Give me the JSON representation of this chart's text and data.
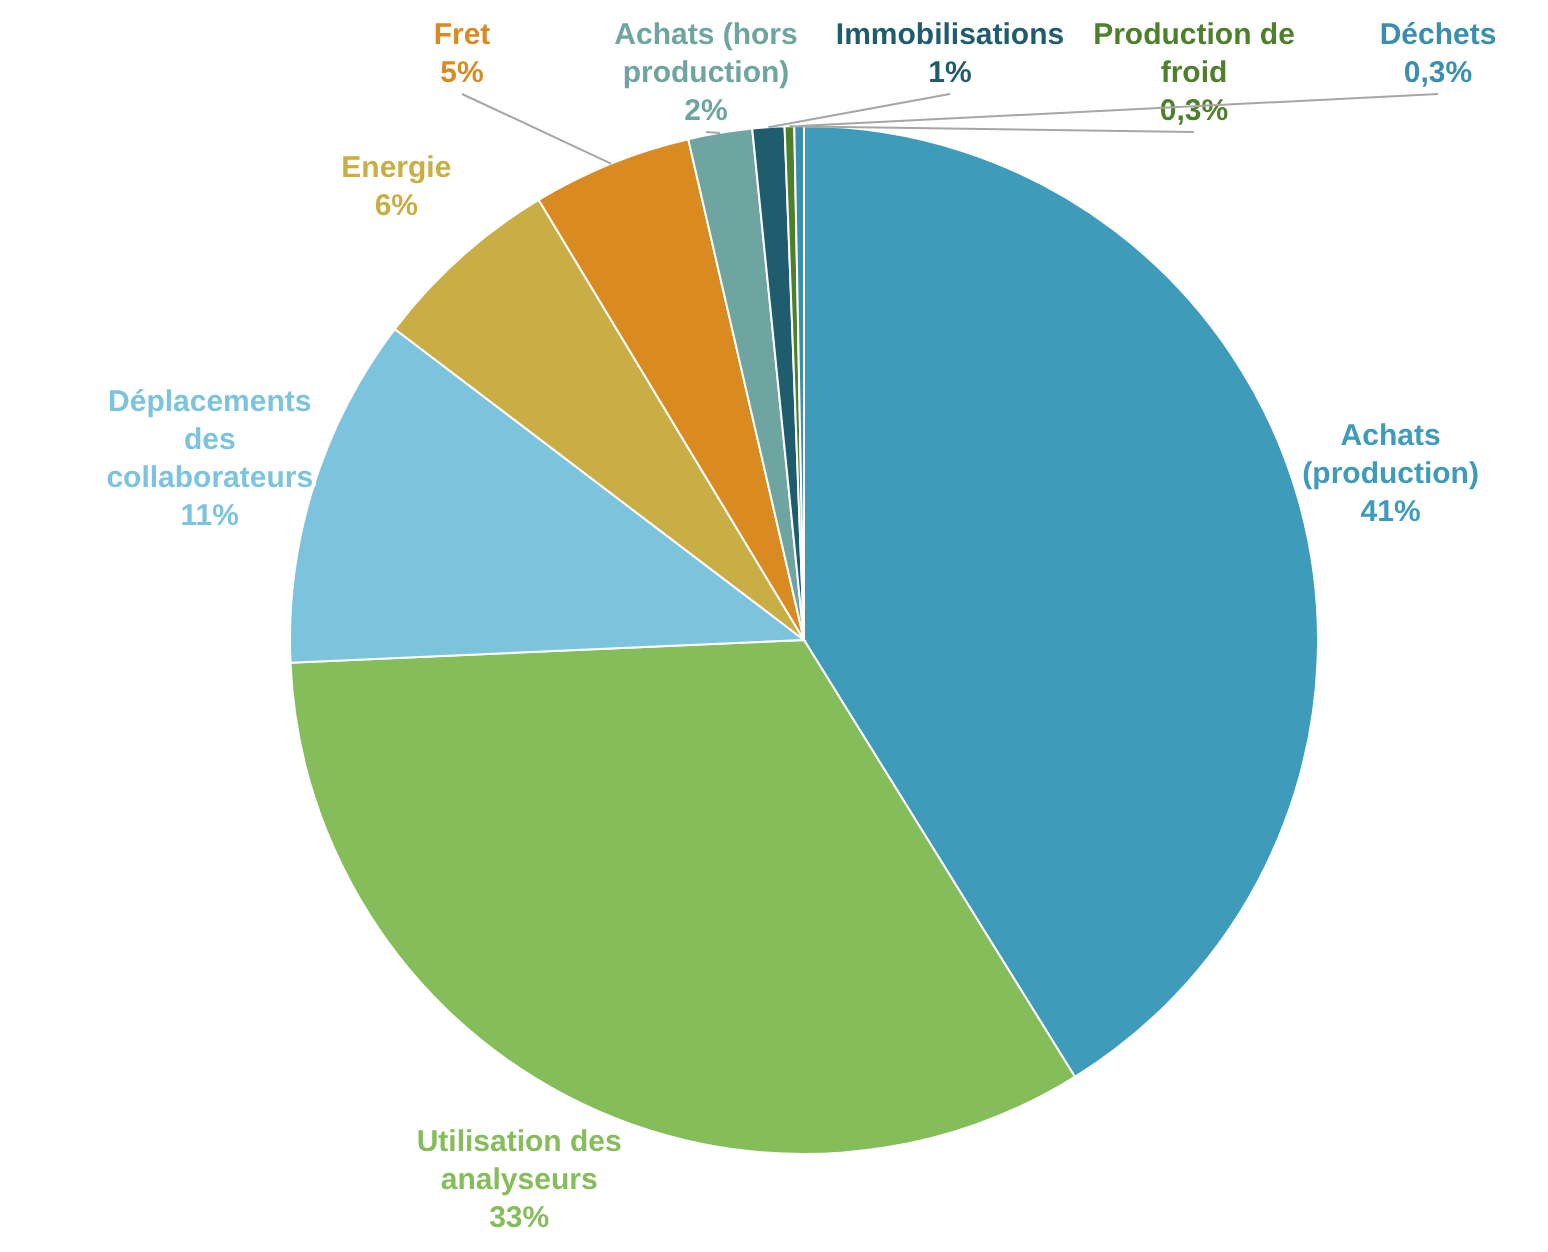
{
  "chart_data": {
    "type": "pie",
    "categories": [
      "Achats (production)",
      "Utilisation des analyseurs",
      "Déplacements des collaborateurs",
      "Energie",
      "Fret",
      "Achats (hors production)",
      "Immobilisations",
      "Production de froid",
      "Déchets"
    ],
    "values": [
      41,
      33,
      11,
      6,
      5,
      2,
      1,
      0.3,
      0.3
    ],
    "value_labels": [
      "41%",
      "33%",
      "11%",
      "6%",
      "5%",
      "2%",
      "1%",
      "0,3%",
      "0,3%"
    ],
    "colors": [
      "#3f9bba",
      "#84bd5a",
      "#7cc4de",
      "#c9ae45",
      "#d98b22",
      "#6fa5a0",
      "#1f5c6e",
      "#4e7f2a",
      "#3a8fb0"
    ]
  }
}
